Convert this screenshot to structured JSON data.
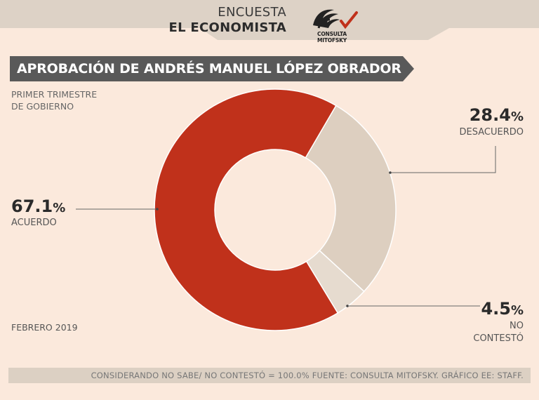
{
  "header": {
    "line1": "ENCUESTA",
    "line2": "EL ECONOMISTA",
    "logo_text": "CONSULTA MITOFSKY"
  },
  "colors": {
    "background": "#fbe9dc",
    "header_band": "#ddd2c6",
    "title_bar": "#595959",
    "acuerdo": "#c0311b",
    "desacuerdo": "#ddcfc0",
    "no_contesto": "#e6dbcf"
  },
  "chart_data": {
    "type": "pie",
    "title": "APROBACIÓN DE ANDRÉS MANUEL LÓPEZ OBRADOR",
    "subtitle": "PRIMER TRIMESTRE DE GOBIERNO",
    "date": "FEBRERO 2019",
    "slices": [
      {
        "name": "ACUERDO",
        "value": 67.1,
        "label": "67.1",
        "unit": "%",
        "color": "#c0311b"
      },
      {
        "name": "DESACUERDO",
        "value": 28.4,
        "label": "28.4",
        "unit": "%",
        "color": "#ddcfc0"
      },
      {
        "name": "NO CONTESTÓ",
        "value": 4.5,
        "label": "4.5",
        "unit": "%",
        "color": "#e6dbcf"
      }
    ],
    "legend": "none"
  },
  "labels": {
    "subtitle_line1": "PRIMER TRIMESTRE",
    "subtitle_line2": "DE GOBIERNO",
    "no_contesto_line1": "NO",
    "no_contesto_line2": "CONTESTÓ"
  },
  "footer": {
    "text": "CONSIDERANDO NO SABE/ NO CONTESTÓ = 100.0%  FUENTE: CONSULTA MITOFSKY.  GRÁFICO EE: STAFF."
  }
}
